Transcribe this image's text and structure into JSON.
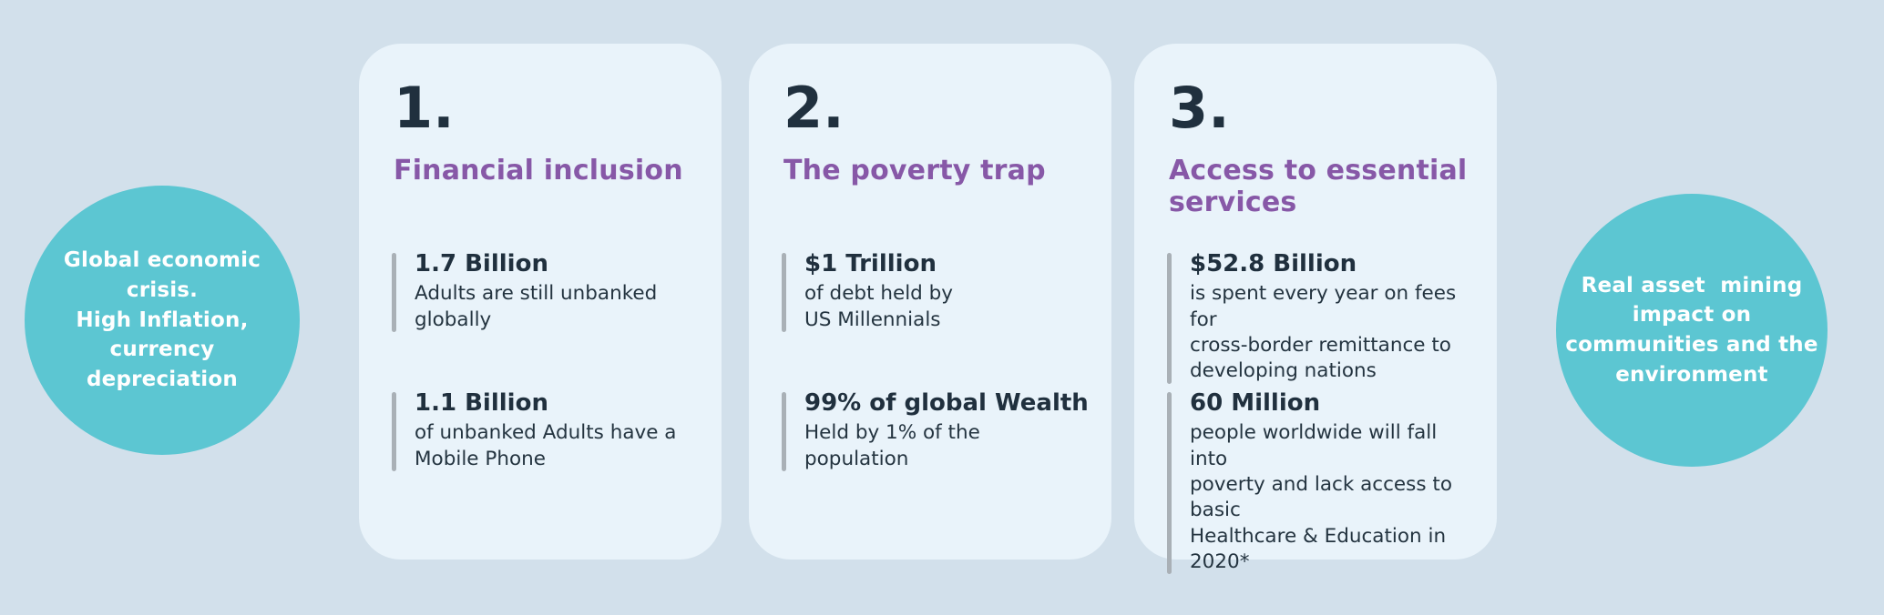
{
  "colors": {
    "page_background": "#d2e0eb",
    "card_background": "#e9f3fa",
    "circle_teal": "#5cc6d2",
    "heading_purple": "#8758a7",
    "text_navy": "#20303e",
    "stat_bar_gray": "#a9b0b6",
    "circle_text_white": "#ffffff"
  },
  "left_circle": {
    "text": "Global economic\ncrisis.\nHigh Inflation,\ncurrency\ndepreciation"
  },
  "right_circle": {
    "text": "Real asset  mining\nimpact on\ncommunities and the\nenvironment"
  },
  "cards": [
    {
      "number": "1.",
      "heading": "Financial inclusion",
      "stats": [
        {
          "value": "1.7 Billion",
          "description": "Adults are still unbanked\nglobally"
        },
        {
          "value": "1.1 Billion",
          "description": "of unbanked Adults have a\nMobile Phone"
        }
      ]
    },
    {
      "number": "2.",
      "heading": "The poverty trap",
      "stats": [
        {
          "value": "$1 Trillion",
          "description": "of debt held by\nUS Millennials"
        },
        {
          "value": "99% of global Wealth",
          "description": "Held by 1% of the\npopulation"
        }
      ]
    },
    {
      "number": "3.",
      "heading": "Access to essential\nservices",
      "stats": [
        {
          "value": "$52.8 Billion",
          "description": "is spent every year on fees for\ncross-border remittance to\ndeveloping nations"
        },
        {
          "value": "60 Million",
          "description": "people worldwide will fall into\npoverty and lack access to basic\nHealthcare & Education in 2020*"
        }
      ]
    }
  ]
}
